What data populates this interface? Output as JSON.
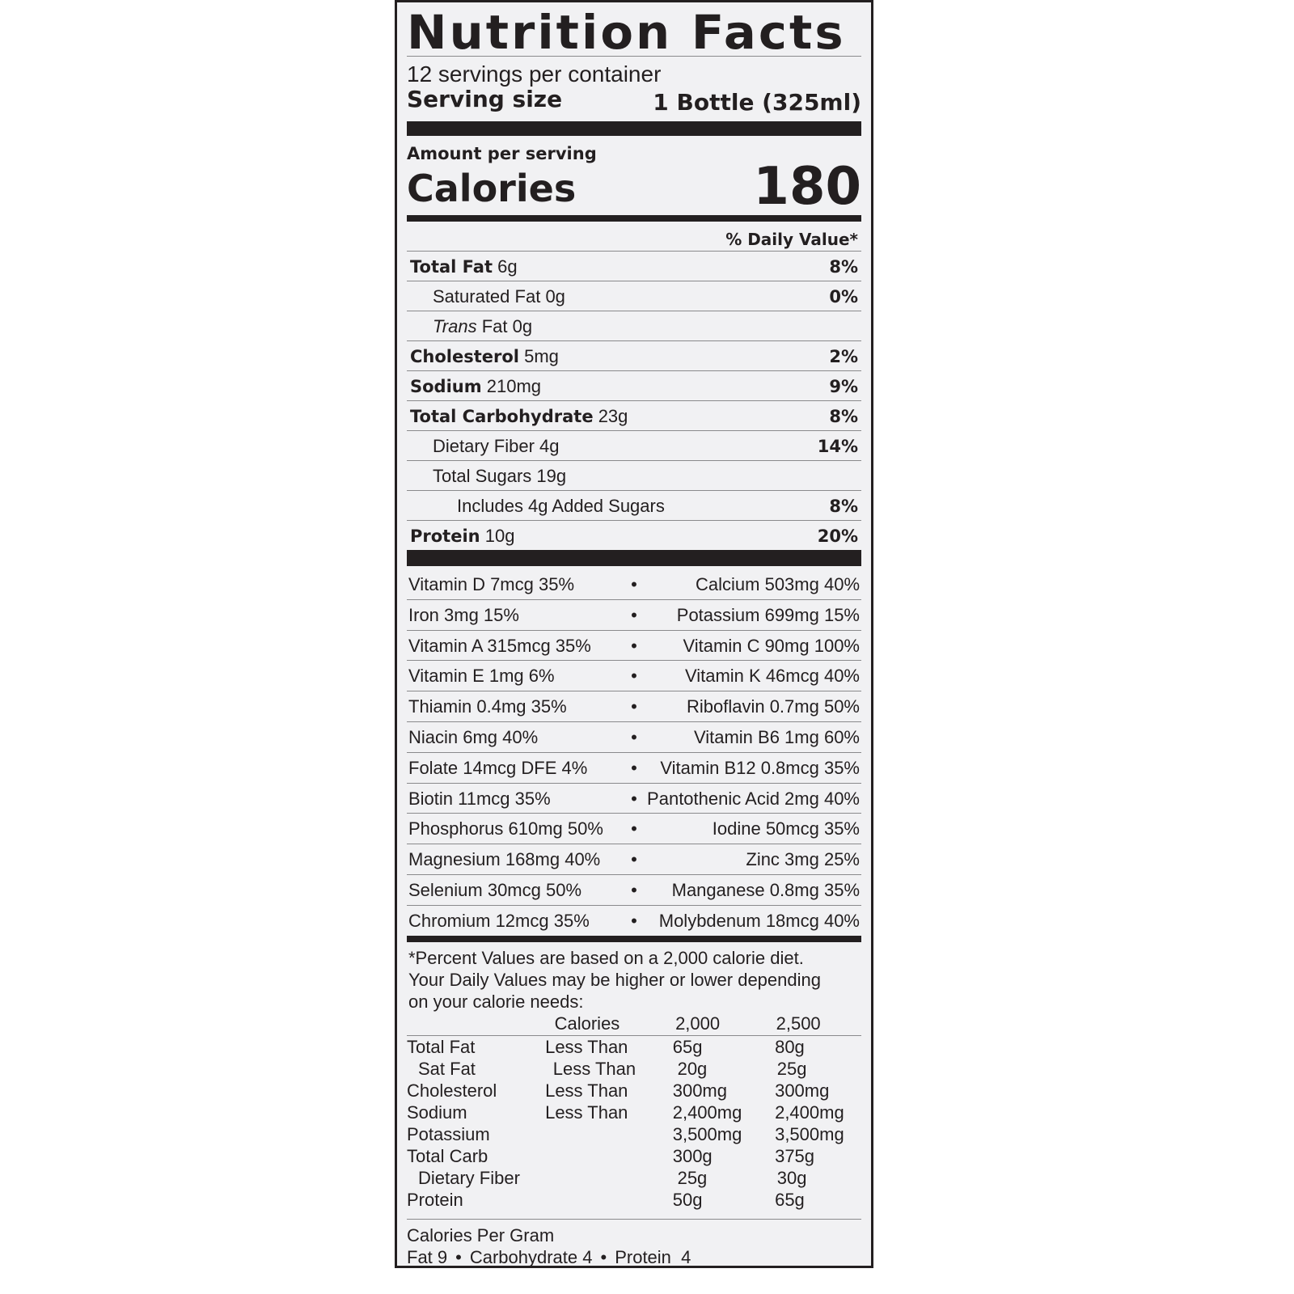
{
  "title": "Nutrition Facts",
  "servings_per_container": "12 servings per container",
  "serving_size": {
    "label": "Serving size",
    "value": "1 Bottle (325ml)"
  },
  "amount_per_serving": "Amount per serving",
  "calories": {
    "label": "Calories",
    "value": "180"
  },
  "daily_value_header": "% Daily Value*",
  "nutrients": [
    {
      "name": "Total Fat",
      "amount": "6g",
      "dv": "8%",
      "bold": true,
      "indent": 0
    },
    {
      "name": "Saturated Fat",
      "amount": "0g",
      "dv": "0%",
      "bold": false,
      "indent": 1
    },
    {
      "name": "Trans",
      "name_suffix": "Fat",
      "amount": "0g",
      "dv": "",
      "bold": false,
      "indent": 1,
      "italic": true
    },
    {
      "name": "Cholesterol",
      "amount": "5mg",
      "dv": "2%",
      "bold": true,
      "indent": 0
    },
    {
      "name": "Sodium",
      "amount": "210mg",
      "dv": "9%",
      "bold": true,
      "indent": 0
    },
    {
      "name": "Total Carbohydrate",
      "amount": "23g",
      "dv": "8%",
      "bold": true,
      "indent": 0
    },
    {
      "name": "Dietary Fiber",
      "amount": "4g",
      "dv": "14%",
      "bold": false,
      "indent": 1
    },
    {
      "name": "Total Sugars",
      "amount": "19g",
      "dv": "",
      "bold": false,
      "indent": 1
    },
    {
      "name": "Includes 4g Added Sugars",
      "amount": "",
      "dv": "8%",
      "bold": false,
      "indent": 2
    },
    {
      "name": "Protein",
      "amount": "10g",
      "dv": "20%",
      "bold": true,
      "indent": 0
    }
  ],
  "vitamins": [
    [
      "Vitamin D 7mcg 35%",
      "Calcium 503mg 40%"
    ],
    [
      "Iron 3mg 15%",
      "Potassium 699mg 15%"
    ],
    [
      "Vitamin A 315mcg 35%",
      "Vitamin C 90mg 100%"
    ],
    [
      "Vitamin E 1mg 6%",
      "Vitamin K 46mcg 40%"
    ],
    [
      "Thiamin 0.4mg 35%",
      "Riboflavin 0.7mg 50%"
    ],
    [
      "Niacin 6mg 40%",
      "Vitamin B6 1mg 60%"
    ],
    [
      "Folate 14mcg DFE 4%",
      "Vitamin B12 0.8mcg 35%"
    ],
    [
      "Biotin 11mcg 35%",
      "Pantothenic Acid 2mg 40%"
    ],
    [
      "Phosphorus 610mg 50%",
      "Iodine 50mcg 35%"
    ],
    [
      "Magnesium 168mg 40%",
      "Zinc 3mg 25%"
    ],
    [
      "Selenium 30mcg 50%",
      "Manganese 0.8mg 35%"
    ],
    [
      "Chromium 12mcg 35%",
      "Molybdenum 18mcg 40%"
    ]
  ],
  "separator": "•",
  "footnote": [
    "*Percent Values are based on a 2,000 calorie diet.",
    "Your Daily Values may be higher or lower depending",
    "on your calorie needs:"
  ],
  "dv_table": {
    "header": [
      "",
      "Calories",
      "2,000",
      "2,500"
    ],
    "rows": [
      [
        "Total Fat",
        "Less Than",
        "65g",
        "80g"
      ],
      [
        "Sat Fat",
        "Less Than",
        "20g",
        "25g"
      ],
      [
        "Cholesterol",
        "Less Than",
        "300mg",
        "300mg"
      ],
      [
        "Sodium",
        "Less Than",
        "2,400mg",
        "2,400mg"
      ],
      [
        "Potassium",
        "",
        "3,500mg",
        "3,500mg"
      ],
      [
        "Total Carb",
        "",
        "300g",
        "375g"
      ],
      [
        "Dietary Fiber",
        "",
        "25g",
        "30g"
      ],
      [
        "Protein",
        "",
        "50g",
        "65g"
      ]
    ],
    "indented_rows": [
      1,
      6
    ]
  },
  "calories_per_gram": {
    "title": "Calories Per Gram",
    "items": [
      "Fat 9",
      "Carbohydrate 4",
      "Protein  4"
    ]
  }
}
